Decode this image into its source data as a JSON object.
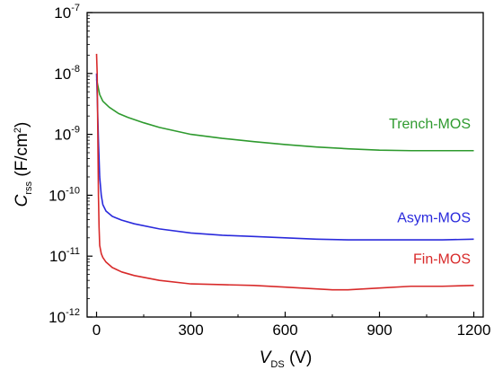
{
  "chart_data": {
    "type": "line",
    "xlabel": {
      "main": "V",
      "sub": "DS",
      "unit": " (V)"
    },
    "ylabel": {
      "main": "C",
      "sub": "rss",
      "unit_pre": " (F/cm",
      "unit_sup": "2",
      "unit_post": ")"
    },
    "xlim": [
      -30,
      1230
    ],
    "ylim": [
      1e-12,
      1e-07
    ],
    "yscale": "log",
    "grid": false,
    "xticks": [
      0,
      300,
      600,
      900,
      1200
    ],
    "xtick_labels": [
      "0",
      "300",
      "600",
      "900",
      "1200"
    ],
    "yticks": [
      1e-12,
      1e-11,
      1e-10,
      1e-09,
      1e-08,
      1e-07
    ],
    "ytick_labels": [
      {
        "base": "10",
        "exp": "-12"
      },
      {
        "base": "10",
        "exp": "-11"
      },
      {
        "base": "10",
        "exp": "-10"
      },
      {
        "base": "10",
        "exp": "-9"
      },
      {
        "base": "10",
        "exp": "-8"
      },
      {
        "base": "10",
        "exp": "-7"
      }
    ],
    "series": [
      {
        "name": "Trench-MOS",
        "color": "#2e9a2e",
        "x": [
          0,
          5,
          10,
          20,
          40,
          70,
          100,
          150,
          200,
          300,
          400,
          500,
          600,
          700,
          800,
          900,
          1000,
          1100,
          1200
        ],
        "y": [
          8e-09,
          6e-09,
          4.5e-09,
          3.5e-09,
          2.8e-09,
          2.2e-09,
          1.9e-09,
          1.55e-09,
          1.3e-09,
          1e-09,
          8.6e-10,
          7.6e-10,
          6.8e-10,
          6.2e-10,
          5.8e-10,
          5.5e-10,
          5.4e-10,
          5.4e-10,
          5.4e-10
        ]
      },
      {
        "name": "Asym-MOS",
        "color": "#2a2adc",
        "x": [
          0,
          3,
          6,
          10,
          15,
          20,
          30,
          50,
          80,
          120,
          200,
          300,
          400,
          500,
          600,
          700,
          800,
          900,
          1000,
          1100,
          1200
        ],
        "y": [
          1e-08,
          3e-09,
          8e-10,
          2e-10,
          1e-10,
          7e-11,
          5.5e-11,
          4.5e-11,
          3.9e-11,
          3.4e-11,
          2.8e-11,
          2.4e-11,
          2.2e-11,
          2.1e-11,
          2e-11,
          1.9e-11,
          1.85e-11,
          1.85e-11,
          1.85e-11,
          1.85e-11,
          1.9e-11
        ]
      },
      {
        "name": "Fin-MOS",
        "color": "#d82a2a",
        "x": [
          0,
          2,
          4,
          6,
          8,
          10,
          15,
          20,
          30,
          50,
          80,
          120,
          200,
          300,
          400,
          500,
          600,
          700,
          750,
          800,
          900,
          1000,
          1100,
          1200
        ],
        "y": [
          2.1e-08,
          1e-08,
          1e-09,
          1e-10,
          3e-11,
          1.5e-11,
          1.1e-11,
          9.5e-12,
          8e-12,
          6.5e-12,
          5.5e-12,
          4.8e-12,
          4e-12,
          3.5e-12,
          3.4e-12,
          3.3e-12,
          3.1e-12,
          2.9e-12,
          2.8e-12,
          2.8e-12,
          3e-12,
          3.2e-12,
          3.2e-12,
          3.3e-12
        ]
      }
    ],
    "annotations": [
      {
        "text": "Trench-MOS",
        "color": "#2e9a2e",
        "x": 1190,
        "y": 1.25e-09,
        "anchor": "end"
      },
      {
        "text": "Asym-MOS",
        "color": "#2a2adc",
        "x": 1190,
        "y": 3.6e-11,
        "anchor": "end"
      },
      {
        "text": "Fin-MOS",
        "color": "#d82a2a",
        "x": 1190,
        "y": 7.5e-12,
        "anchor": "end"
      }
    ]
  }
}
